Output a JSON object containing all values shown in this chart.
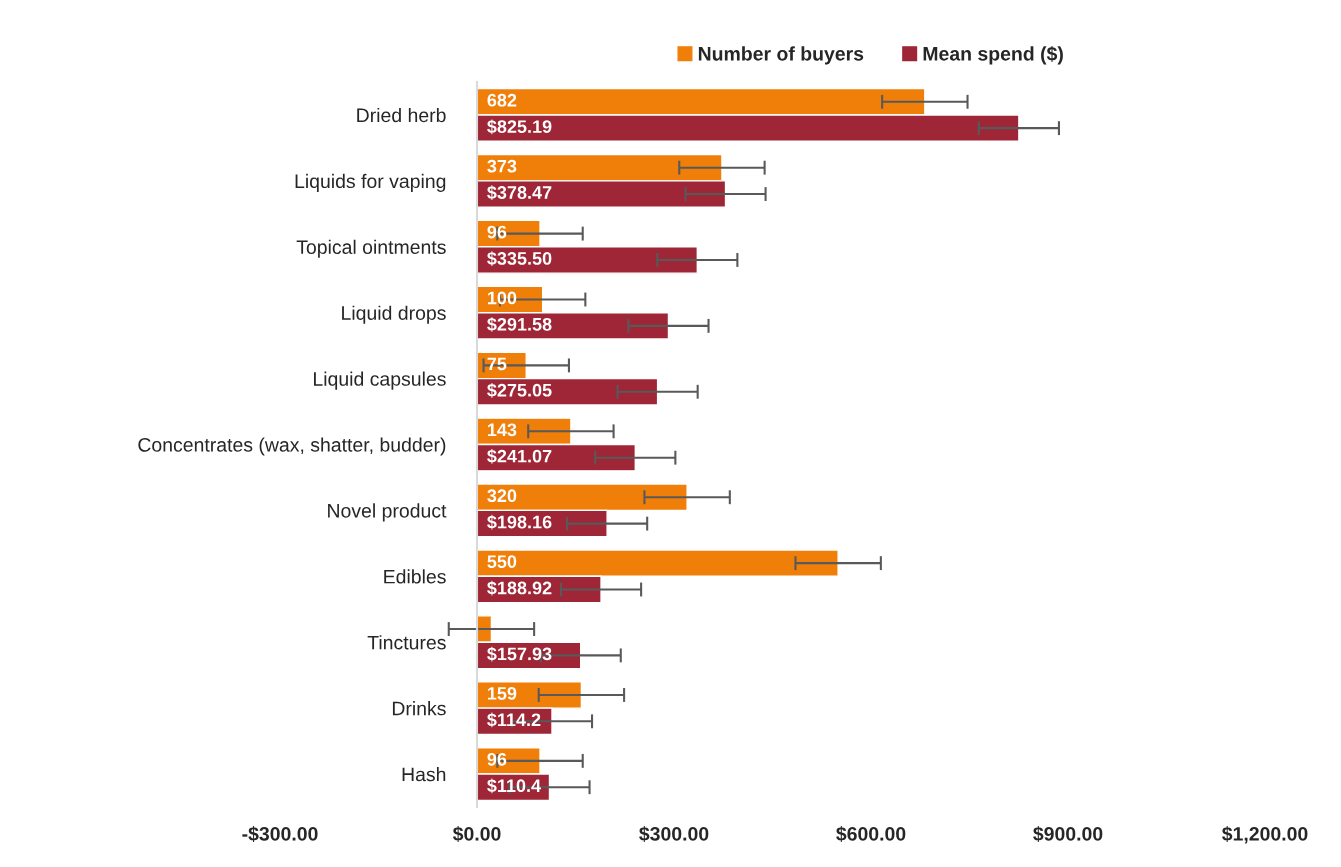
{
  "chart_data": {
    "type": "bar",
    "orientation": "horizontal",
    "categories": [
      "Dried herb",
      "Liquids for vaping",
      "Topical ointments",
      "Liquid drops",
      "Liquid capsules",
      "Concentrates (wax, shatter, budder)",
      "Novel product",
      "Edibles",
      "Tinctures",
      "Drinks",
      "Hash"
    ],
    "series": [
      {
        "name": "Number of buyers",
        "color": "#f07f09",
        "values": [
          682,
          373,
          96,
          100,
          75,
          143,
          320,
          550,
          22,
          159,
          96
        ],
        "errors": [
          65,
          65,
          65,
          65,
          65,
          65,
          65,
          65,
          65,
          65,
          65
        ],
        "value_labels": [
          "682",
          "373",
          "96",
          "100",
          "75",
          "143",
          "320",
          "550",
          null,
          "159",
          "96"
        ]
      },
      {
        "name": "Mean spend ($)",
        "color": "#9e2636",
        "values": [
          825.19,
          378.47,
          335.5,
          291.58,
          275.05,
          241.07,
          198.16,
          188.92,
          157.93,
          114.2,
          110.4
        ],
        "errors": [
          61,
          61,
          61,
          61,
          61,
          61,
          61,
          61,
          61,
          61,
          61
        ],
        "value_labels": [
          "$825.19",
          "$378.47",
          "$335.50",
          "$291.58",
          "$275.05",
          "$241.07",
          "$198.16",
          "$188.92",
          "$157.93",
          "$114.2",
          "$110.4"
        ]
      }
    ],
    "xlim": [
      -300,
      1200
    ],
    "xticks": [
      {
        "value": -300,
        "label": "-$300.00"
      },
      {
        "value": 0,
        "label": "$0.00"
      },
      {
        "value": 300,
        "label": "$300.00"
      },
      {
        "value": 600,
        "label": "$600.00"
      },
      {
        "value": 900,
        "label": "$900.00"
      },
      {
        "value": 1200,
        "label": "$1,200.00"
      }
    ],
    "legend": "top",
    "grid": false
  }
}
